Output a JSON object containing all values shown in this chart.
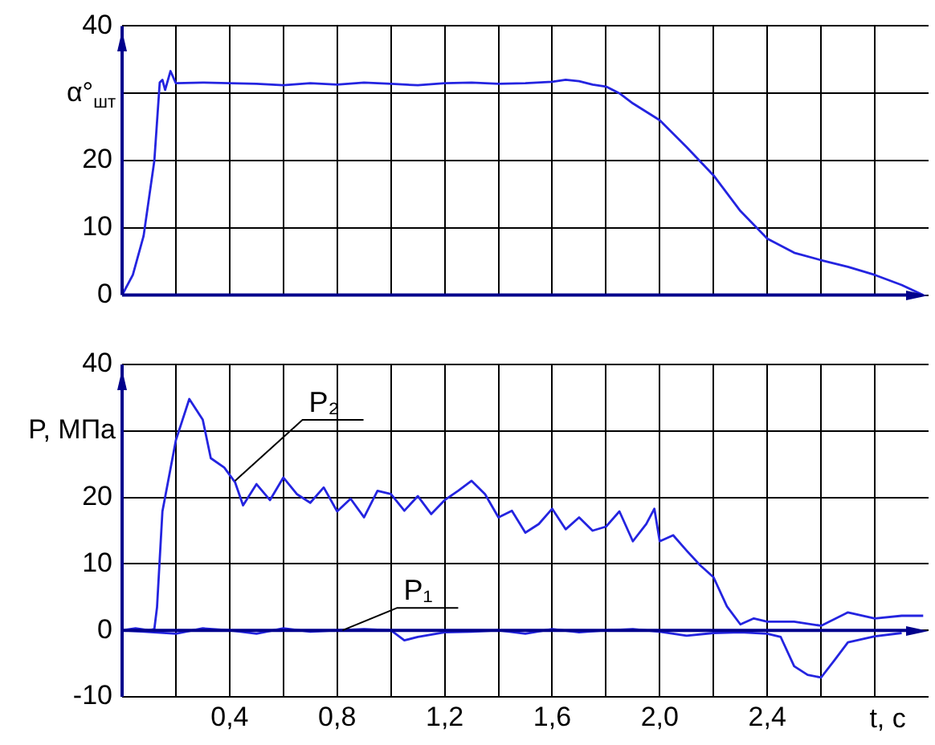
{
  "chart_data": [
    {
      "type": "line",
      "ylabel": "α°$_{шт}$",
      "xlim": [
        0,
        3
      ],
      "ylim": [
        0,
        40
      ],
      "grid": true,
      "tick_labels": "y",
      "xticks": [
        {
          "value": 0.2,
          "label": null
        },
        {
          "value": 0.4,
          "label": null
        },
        {
          "value": 0.6,
          "label": null
        },
        {
          "value": 0.8,
          "label": null
        },
        {
          "value": 1.0,
          "label": null
        },
        {
          "value": 1.2,
          "label": null
        },
        {
          "value": 1.4,
          "label": null
        },
        {
          "value": 1.6,
          "label": null
        },
        {
          "value": 1.8,
          "label": null
        },
        {
          "value": 2.0,
          "label": null
        },
        {
          "value": 2.2,
          "label": null
        },
        {
          "value": 2.4,
          "label": null
        },
        {
          "value": 2.6,
          "label": null
        },
        {
          "value": 2.8,
          "label": null
        }
      ],
      "yticks": [
        0,
        10,
        20,
        {
          "value": 30,
          "label": null
        },
        40
      ],
      "series": [
        {
          "color": "#2424e0",
          "x": [
            0,
            0.04,
            0.08,
            0.12,
            0.14,
            0.15,
            0.16,
            0.18,
            0.2,
            0.3,
            0.4,
            0.5,
            0.6,
            0.7,
            0.8,
            0.9,
            1.0,
            1.1,
            1.2,
            1.3,
            1.4,
            1.5,
            1.6,
            1.65,
            1.7,
            1.75,
            1.8,
            1.85,
            1.9,
            2.0,
            2.1,
            2.2,
            2.3,
            2.4,
            2.5,
            2.6,
            2.7,
            2.8,
            2.9,
            2.98
          ],
          "values": [
            0,
            3,
            8.8,
            20,
            31.6,
            32,
            30.5,
            33.3,
            31.5,
            31.6,
            31.5,
            31.4,
            31.2,
            31.5,
            31.3,
            31.6,
            31.4,
            31.2,
            31.5,
            31.6,
            31.4,
            31.5,
            31.7,
            32,
            31.8,
            31.3,
            31,
            30,
            28.5,
            26,
            22,
            17.8,
            12.5,
            8.4,
            6.3,
            5.2,
            4.2,
            3,
            1.5,
            0
          ]
        }
      ]
    },
    {
      "type": "line",
      "ylabel": "P, МПа",
      "xlabel": "t, c",
      "xlim": [
        0,
        3
      ],
      "ylim": [
        -10,
        40
      ],
      "grid": true,
      "xticks": [
        {
          "value": 0.2,
          "label": null
        },
        {
          "value": 0.4,
          "label": "0,4"
        },
        {
          "value": 0.6,
          "label": null
        },
        {
          "value": 0.8,
          "label": "0,8"
        },
        {
          "value": 1.0,
          "label": null
        },
        {
          "value": 1.2,
          "label": "1,2"
        },
        {
          "value": 1.4,
          "label": null
        },
        {
          "value": 1.6,
          "label": "1,6"
        },
        {
          "value": 1.8,
          "label": null
        },
        {
          "value": 2.0,
          "label": "2,0"
        },
        {
          "value": 2.2,
          "label": null
        },
        {
          "value": 2.4,
          "label": "2,4"
        },
        {
          "value": 2.6,
          "label": null
        },
        {
          "value": 2.8,
          "label": null
        }
      ],
      "yticks": [
        -10,
        0,
        10,
        20,
        {
          "value": 30,
          "label": null
        },
        40
      ],
      "annotations": [
        {
          "text": "P₂",
          "x": 0.42,
          "y": 22.5
        },
        {
          "text": "P₁",
          "x": 0.82,
          "y": 0
        }
      ],
      "ref_lines": [
        {
          "axis": "y",
          "value": 0,
          "color": "#00008c"
        }
      ],
      "series": [
        {
          "color": "#2424e0",
          "x": [
            0,
            0.05,
            0.1,
            0.12,
            0.13,
            0.14,
            0.15,
            0.2,
            0.25,
            0.3,
            0.33,
            0.38,
            0.42,
            0.45,
            0.5,
            0.55,
            0.6,
            0.65,
            0.7,
            0.75,
            0.8,
            0.85,
            0.9,
            0.95,
            1.0,
            1.05,
            1.1,
            1.15,
            1.2,
            1.25,
            1.3,
            1.35,
            1.4,
            1.45,
            1.5,
            1.55,
            1.6,
            1.65,
            1.7,
            1.75,
            1.8,
            1.85,
            1.9,
            1.95,
            1.98,
            2.0,
            2.05,
            2.1,
            2.15,
            2.2,
            2.25,
            2.3,
            2.35,
            2.4,
            2.5,
            2.6,
            2.7,
            2.8,
            2.9,
            2.98
          ],
          "values": [
            0,
            0.3,
            0,
            0.2,
            3.5,
            10.7,
            17.9,
            28.6,
            34.8,
            31.7,
            25.9,
            24.5,
            22.3,
            18.8,
            22,
            19.6,
            23,
            20.5,
            19.2,
            21.5,
            17.9,
            19.8,
            17,
            21,
            20.5,
            18,
            20.2,
            17.5,
            19.6,
            21,
            22.5,
            20.5,
            17,
            18,
            14.7,
            16,
            18.3,
            15.2,
            17,
            15,
            15.6,
            17.9,
            13.4,
            16,
            18.3,
            13.4,
            14.3,
            12,
            9.8,
            8,
            3.6,
            0.9,
            1.8,
            1.3,
            1.3,
            0.7,
            2.7,
            1.8,
            2.2,
            2.2
          ]
        },
        {
          "color": "#2424e0",
          "x": [
            0,
            0.2,
            0.3,
            0.4,
            0.5,
            0.6,
            0.7,
            0.8,
            0.9,
            1.0,
            1.05,
            1.1,
            1.2,
            1.3,
            1.4,
            1.5,
            1.6,
            1.7,
            1.8,
            1.9,
            2.0,
            2.1,
            2.2,
            2.3,
            2.4,
            2.45,
            2.5,
            2.55,
            2.6,
            2.65,
            2.7,
            2.8,
            2.9
          ],
          "values": [
            0,
            -0.5,
            0.3,
            0,
            -0.5,
            0.3,
            -0.2,
            0,
            0.2,
            0,
            -1.5,
            -1,
            -0.3,
            -0.2,
            0,
            -0.5,
            0.2,
            -0.3,
            0,
            0.2,
            -0.2,
            -0.8,
            -0.4,
            -0.3,
            -0.5,
            -1,
            -5.4,
            -6.7,
            -7.1,
            -4.5,
            -1.8,
            -0.9,
            -0.4
          ]
        }
      ]
    }
  ]
}
